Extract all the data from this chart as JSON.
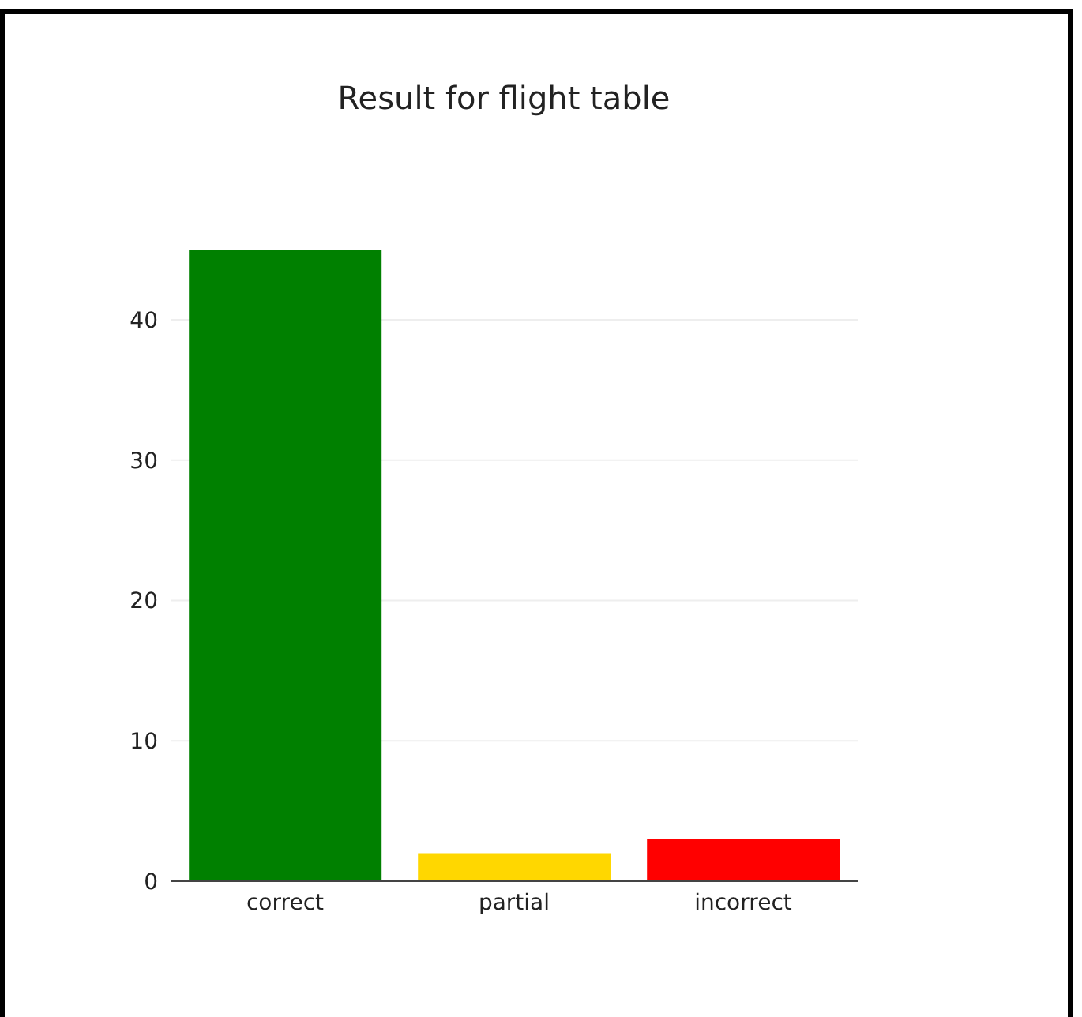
{
  "chart_data": {
    "type": "bar",
    "title": "Result for flight table",
    "categories": [
      "correct",
      "partial",
      "incorrect"
    ],
    "values": [
      45,
      2,
      3
    ],
    "ylim": [
      0,
      45
    ],
    "colors": [
      "#008000",
      "#ffd700",
      "#ff0000"
    ],
    "yticks": [
      0,
      10,
      20,
      30,
      40
    ],
    "grid": "y"
  }
}
